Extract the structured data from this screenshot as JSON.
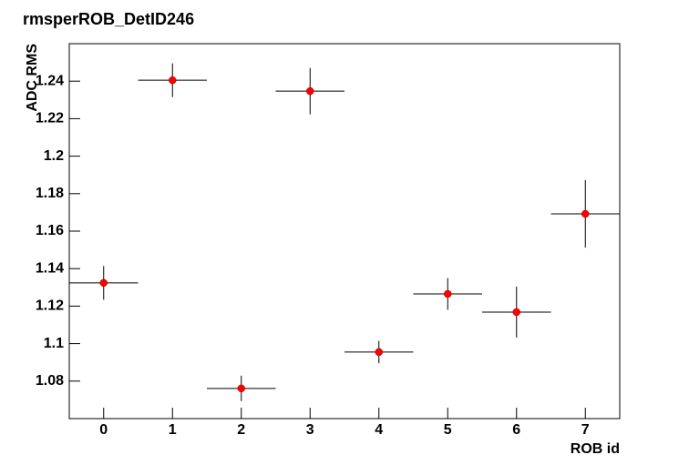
{
  "chart_data": {
    "type": "errorbar",
    "title": "rmsperROB_DetID246",
    "xlabel": "ROB id",
    "ylabel": "ADC RMS",
    "x": [
      0,
      1,
      2,
      3,
      4,
      5,
      6,
      7
    ],
    "values": [
      1.1324,
      1.2405,
      1.0761,
      1.2347,
      1.0955,
      1.1265,
      1.1168,
      1.1692
    ],
    "errors": [
      0.009,
      0.009,
      0.0068,
      0.0124,
      0.006,
      0.0085,
      0.0136,
      0.018
    ],
    "x_error": 0.5,
    "color": "#ff0000",
    "xlim": [
      -0.5,
      7.5
    ],
    "xticks": [
      0,
      1,
      2,
      3,
      4,
      5,
      6,
      7
    ],
    "ylim": [
      1.06,
      1.26
    ],
    "yticks": [
      1.08,
      1.1,
      1.12,
      1.14,
      1.16,
      1.18,
      1.2,
      1.22,
      1.24
    ],
    "grid": false
  }
}
